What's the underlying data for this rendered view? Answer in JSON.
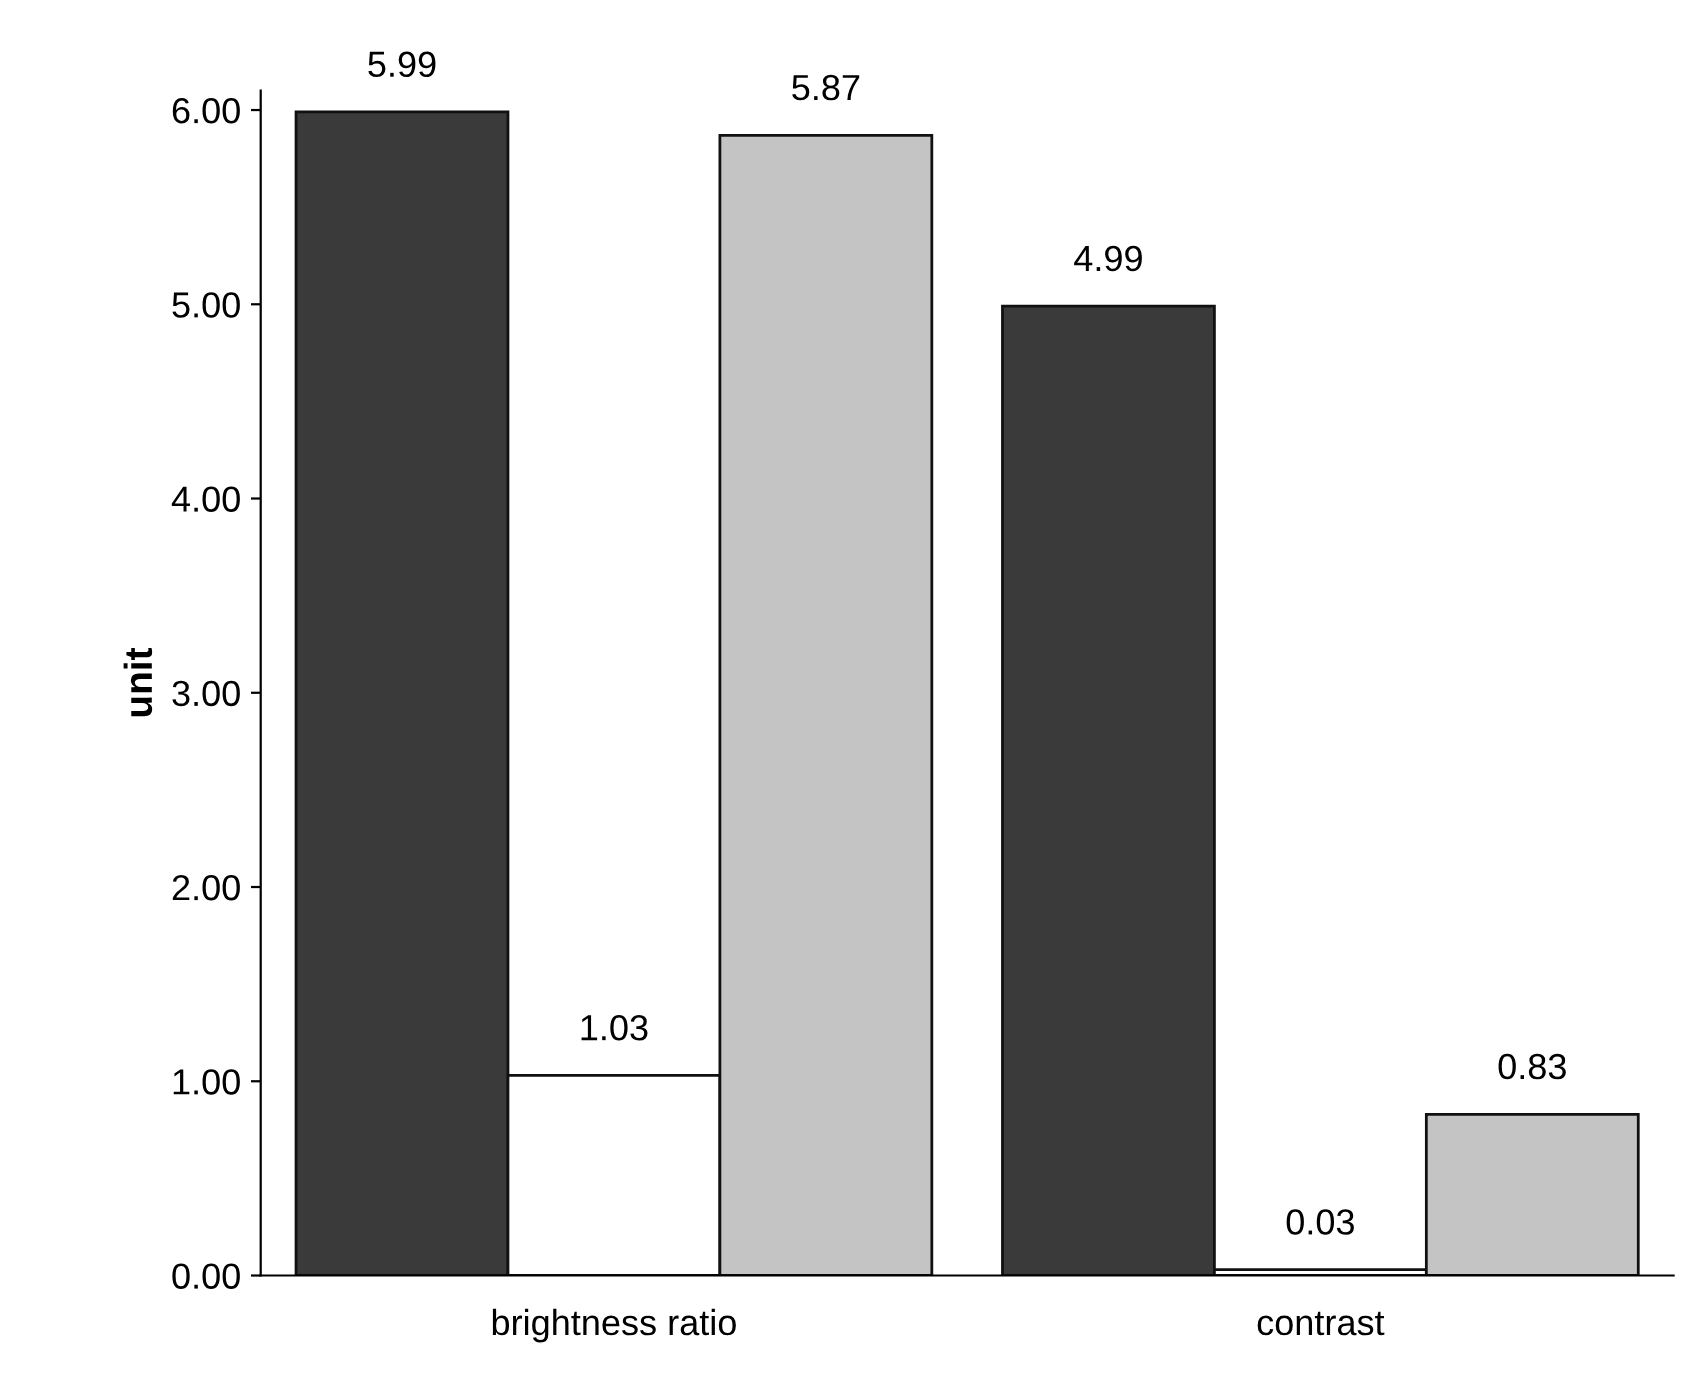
{
  "chart_data": {
    "type": "bar",
    "ylabel": "unit",
    "categories": [
      "brightness ratio",
      "contrast"
    ],
    "series": [
      {
        "color": "#3a3a3a",
        "values": [
          5.99,
          4.99
        ],
        "value_labels": [
          "5.99",
          "4.99"
        ]
      },
      {
        "color": "#ffffff",
        "values": [
          1.03,
          0.03
        ],
        "value_labels": [
          "1.03",
          "0.03"
        ]
      },
      {
        "color": "#c4c4c4",
        "values": [
          5.87,
          0.83
        ],
        "value_labels": [
          "5.87",
          "0.83"
        ]
      }
    ],
    "ylim": [
      0,
      6.1
    ],
    "yticks": [
      {
        "value": 0,
        "label": "0.00"
      },
      {
        "value": 1,
        "label": "1.00"
      },
      {
        "value": 2,
        "label": "2.00"
      },
      {
        "value": 3,
        "label": "3.00"
      },
      {
        "value": 4,
        "label": "4.00"
      },
      {
        "value": 5,
        "label": "5.00"
      },
      {
        "value": 6,
        "label": "6.00"
      }
    ],
    "grid": false
  }
}
